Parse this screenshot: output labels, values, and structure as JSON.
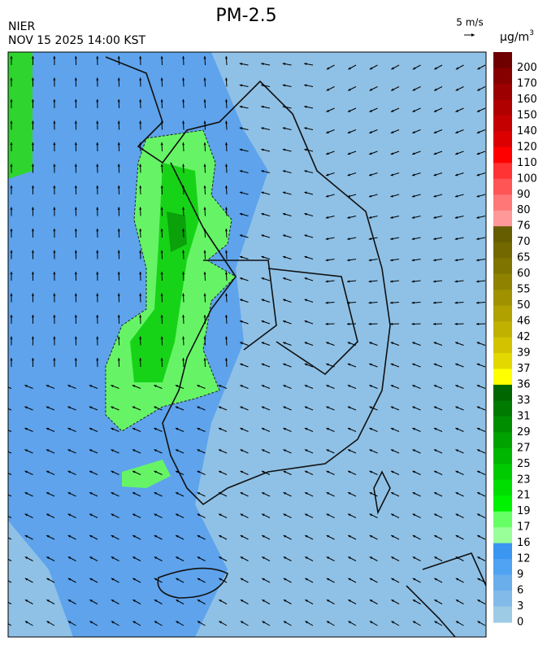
{
  "header": {
    "title": "PM-2.5",
    "agency": "NIER",
    "datetime": "NOV 15 2025 14:00 KST",
    "wind_scale": "5 m/s"
  },
  "colorbar": {
    "unit": "μg/m",
    "unit_power": "3",
    "labels": [
      200,
      170,
      160,
      150,
      140,
      120,
      110,
      100,
      90,
      80,
      76,
      70,
      65,
      60,
      55,
      50,
      46,
      42,
      39,
      37,
      36,
      33,
      31,
      29,
      27,
      25,
      23,
      21,
      19,
      17,
      16,
      12,
      9,
      6,
      3,
      0
    ],
    "colors": [
      "#6e0000",
      "#860000",
      "#9c0000",
      "#b00000",
      "#c40000",
      "#dc0000",
      "#ff0000",
      "#ff3333",
      "#ff5555",
      "#ff7777",
      "#ff9999",
      "#665c00",
      "#736800",
      "#807400",
      "#8f8200",
      "#a09100",
      "#b0a000",
      "#c0b000",
      "#d2c200",
      "#e3d800",
      "#ffff00",
      "#006600",
      "#007a00",
      "#008e00",
      "#00a200",
      "#00b600",
      "#00ca00",
      "#00de00",
      "#00f200",
      "#66ff66",
      "#99ff99",
      "#3b96f2",
      "#4fa3f2",
      "#6aaeec",
      "#82bbea",
      "#9dcbe6"
    ]
  }
}
